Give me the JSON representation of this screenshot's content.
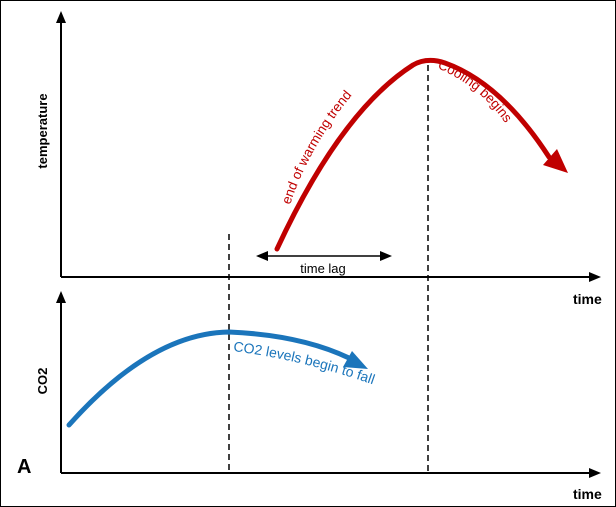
{
  "top_panel": {
    "y_axis_label": "temperature",
    "x_axis_label": "time",
    "curve_labels": {
      "rising": "end of warming trend",
      "falling": "Cooling begins"
    },
    "lag_label": "time lag"
  },
  "bottom_panel": {
    "panel_letter": "A",
    "y_axis_label": "CO2",
    "x_axis_label": "time",
    "curve_label": "CO2 levels begin to fall"
  },
  "colors": {
    "temperature_curve": "#c00000",
    "co2_curve": "#1b75bb",
    "axes": "#000000"
  }
}
